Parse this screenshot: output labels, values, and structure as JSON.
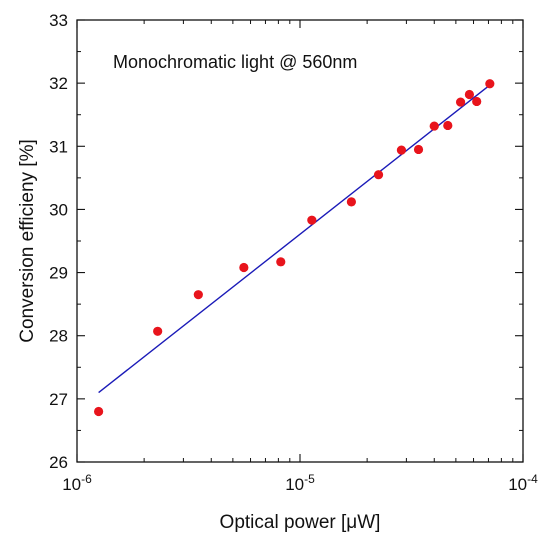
{
  "chart_data": {
    "type": "scatter",
    "title": "",
    "annotation": "Monochromatic light @ 560nm",
    "xlabel": "Optical power [μW]",
    "ylabel": "Conversion efficieny [%]",
    "xscale": "log",
    "xlim": [
      1e-06,
      0.0001
    ],
    "ylim": [
      26,
      33
    ],
    "grid": false,
    "x_ticks": [
      {
        "value": 1e-06,
        "base": "10",
        "exp": "-6"
      },
      {
        "value": 1e-05,
        "base": "10",
        "exp": "-5"
      },
      {
        "value": 0.0001,
        "base": "10",
        "exp": "-4"
      }
    ],
    "y_ticks": [
      {
        "value": 26,
        "label": "26"
      },
      {
        "value": 27,
        "label": "27"
      },
      {
        "value": 28,
        "label": "28"
      },
      {
        "value": 29,
        "label": "29"
      },
      {
        "value": 30,
        "label": "30"
      },
      {
        "value": 31,
        "label": "31"
      },
      {
        "value": 32,
        "label": "32"
      },
      {
        "value": 33,
        "label": "33"
      }
    ],
    "points": {
      "color": "#e8141c",
      "x": [
        1.25e-06,
        2.3e-06,
        3.5e-06,
        5.6e-06,
        8.2e-06,
        1.13e-05,
        1.7e-05,
        2.25e-05,
        2.85e-05,
        3.4e-05,
        4e-05,
        4.6e-05,
        5.25e-05,
        5.75e-05,
        6.2e-05,
        7.1e-05
      ],
      "y": [
        26.8,
        28.07,
        28.65,
        29.08,
        29.17,
        29.83,
        30.12,
        30.55,
        30.94,
        30.95,
        31.32,
        31.33,
        31.7,
        31.82,
        31.71,
        31.99
      ]
    },
    "fit_line": {
      "color": "#1a1ab8",
      "x": [
        1.25e-06,
        7.1e-05
      ],
      "y": [
        27.1,
        31.97
      ]
    }
  }
}
